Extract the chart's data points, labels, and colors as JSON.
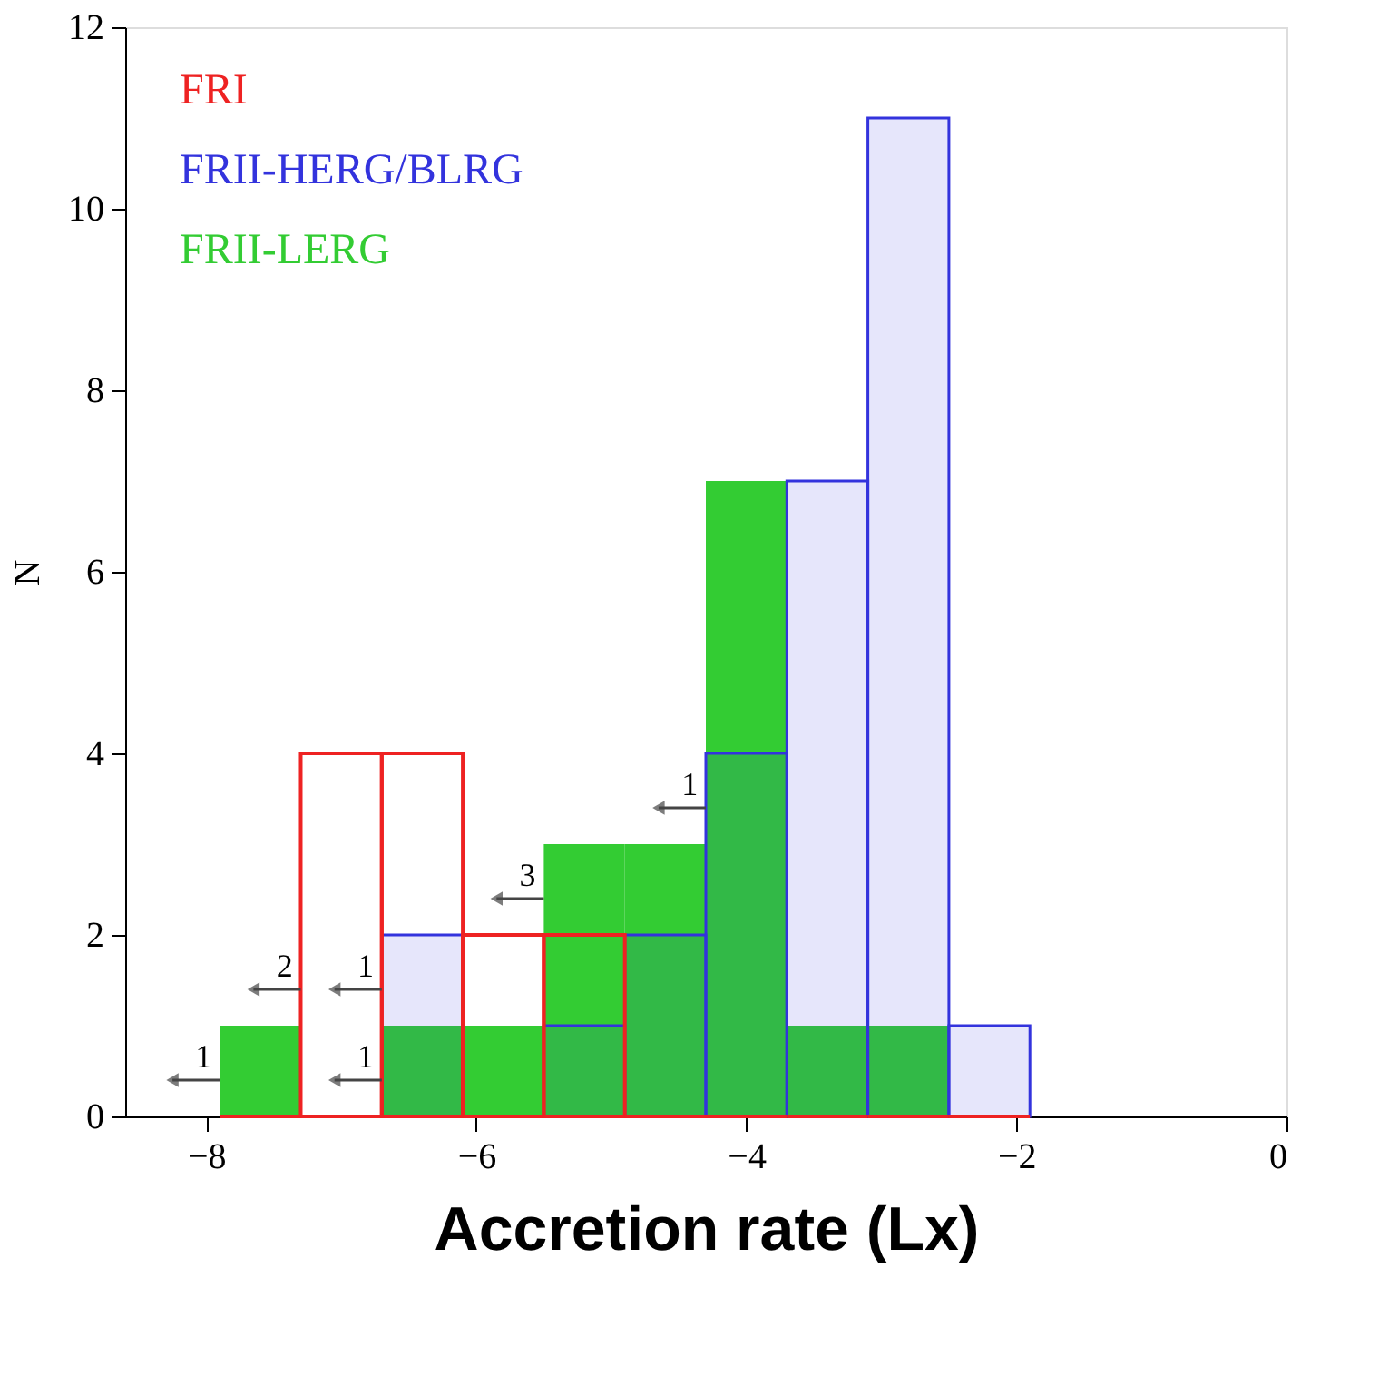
{
  "chart_data": {
    "type": "histogram",
    "xlabel": "Accretion rate (Lx)",
    "ylabel": "N",
    "bins": [
      -7.9,
      -7.3,
      -6.7,
      -6.1,
      -5.5,
      -4.9,
      -4.3,
      -3.7,
      -3.1,
      -2.5,
      -1.9
    ],
    "series": [
      {
        "name": "FRI",
        "color": "#ee2222",
        "values": [
          0,
          4,
          4,
          2,
          2,
          0,
          0,
          0,
          0,
          0
        ]
      },
      {
        "name": "FRII-HERG/BLRG",
        "color": "#3333dd",
        "values": [
          0,
          0,
          2,
          0,
          1,
          2,
          4,
          7,
          11,
          1
        ]
      },
      {
        "name": "FRII-LERG",
        "color": "#33cc33",
        "values": [
          1,
          0,
          1,
          1,
          3,
          3,
          7,
          1,
          1,
          0
        ]
      }
    ],
    "xlim": [
      -8.6,
      0
    ],
    "xticks": [
      -8,
      -6,
      -4,
      -2,
      0
    ],
    "ylim": [
      0,
      12
    ],
    "yticks": [
      0,
      2,
      4,
      6,
      8,
      10,
      12
    ],
    "grid": false,
    "legend": "top left",
    "annotations": [
      {
        "text": "1",
        "x": -7.9,
        "y": 0.4
      },
      {
        "text": "2",
        "x": -7.3,
        "y": 1.4
      },
      {
        "text": "1",
        "x": -6.7,
        "y": 1.4
      },
      {
        "text": "1",
        "x": -6.7,
        "y": 0.4
      },
      {
        "text": "3",
        "x": -5.5,
        "y": 2.4
      },
      {
        "text": "1",
        "x": -4.3,
        "y": 3.4
      }
    ]
  }
}
